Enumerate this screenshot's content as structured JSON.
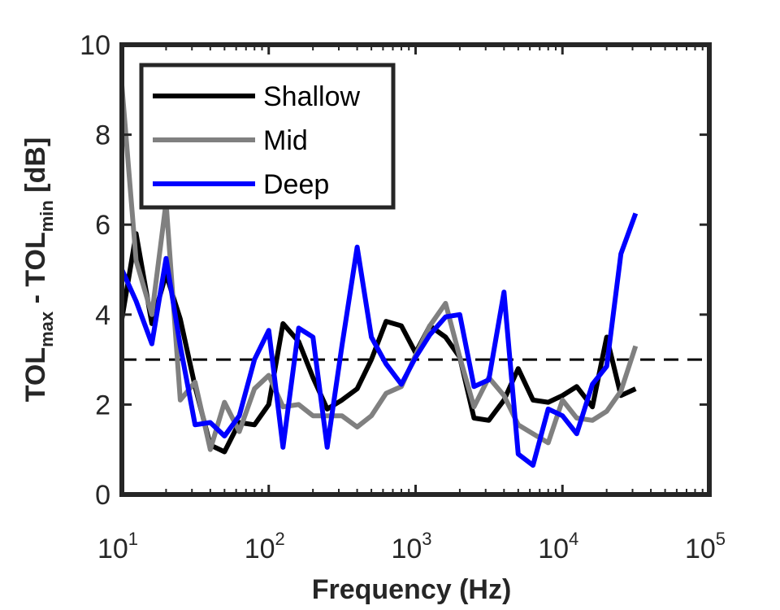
{
  "chart_data": {
    "type": "line",
    "xscale": "log",
    "xlim": [
      10,
      100000
    ],
    "ylim": [
      0,
      10
    ],
    "xticks": [
      {
        "value": 10,
        "base": "10",
        "exp": "1"
      },
      {
        "value": 100,
        "base": "10",
        "exp": "2"
      },
      {
        "value": 1000,
        "base": "10",
        "exp": "3"
      },
      {
        "value": 10000,
        "base": "10",
        "exp": "4"
      },
      {
        "value": 100000,
        "base": "10",
        "exp": "5"
      }
    ],
    "yticks": [
      "0",
      "2",
      "4",
      "6",
      "8",
      "10"
    ],
    "xlabel": "Frequency (Hz)",
    "ylabel": {
      "p1": "TOL",
      "s1": "max",
      "p2": " - TOL",
      "s2": "min",
      "p3": " [dB]"
    },
    "x": [
      10,
      12.5,
      16,
      20,
      25,
      31.5,
      40,
      50,
      63,
      80,
      100,
      125,
      160,
      200,
      250,
      315,
      400,
      500,
      630,
      800,
      1000,
      1250,
      1600,
      2000,
      2500,
      3150,
      4000,
      5000,
      6300,
      8000,
      10000,
      12500,
      16000,
      20000,
      25000,
      31500
    ],
    "series": [
      {
        "name": "Shallow",
        "color": "#000000",
        "values": [
          3.9,
          5.8,
          3.8,
          4.9,
          3.9,
          2.4,
          1.1,
          0.95,
          1.6,
          1.55,
          2.0,
          3.8,
          3.4,
          2.6,
          1.9,
          2.1,
          2.35,
          3.0,
          3.85,
          3.75,
          3.15,
          3.75,
          3.5,
          3.05,
          1.7,
          1.65,
          2.1,
          2.8,
          2.1,
          2.05,
          2.2,
          2.4,
          1.95,
          3.5,
          2.2,
          2.35
        ]
      },
      {
        "name": "Mid",
        "color": "#808080",
        "values": [
          9.1,
          5.2,
          4.0,
          6.5,
          2.1,
          2.5,
          1.0,
          2.05,
          1.4,
          2.35,
          2.65,
          1.95,
          2.0,
          1.75,
          1.75,
          1.75,
          1.5,
          1.75,
          2.25,
          2.4,
          3.1,
          3.75,
          4.25,
          3.05,
          1.95,
          2.6,
          2.2,
          1.55,
          1.35,
          1.15,
          2.1,
          1.7,
          1.65,
          1.85,
          2.3,
          3.3
        ]
      },
      {
        "name": "Deep",
        "color": "#0000FF",
        "values": [
          5.0,
          4.3,
          3.35,
          5.25,
          3.3,
          1.55,
          1.6,
          1.3,
          1.75,
          3.0,
          3.65,
          1.05,
          3.7,
          3.5,
          1.05,
          3.3,
          5.5,
          3.5,
          2.9,
          2.45,
          3.05,
          3.55,
          3.95,
          4.0,
          2.4,
          2.55,
          4.5,
          0.9,
          0.65,
          1.9,
          1.75,
          1.35,
          2.45,
          2.85,
          5.35,
          6.25
        ]
      }
    ],
    "reference_line": {
      "y": 3,
      "style": "dashed",
      "color": "#000000"
    },
    "legend": {
      "position": "top-left"
    },
    "grid": false
  }
}
